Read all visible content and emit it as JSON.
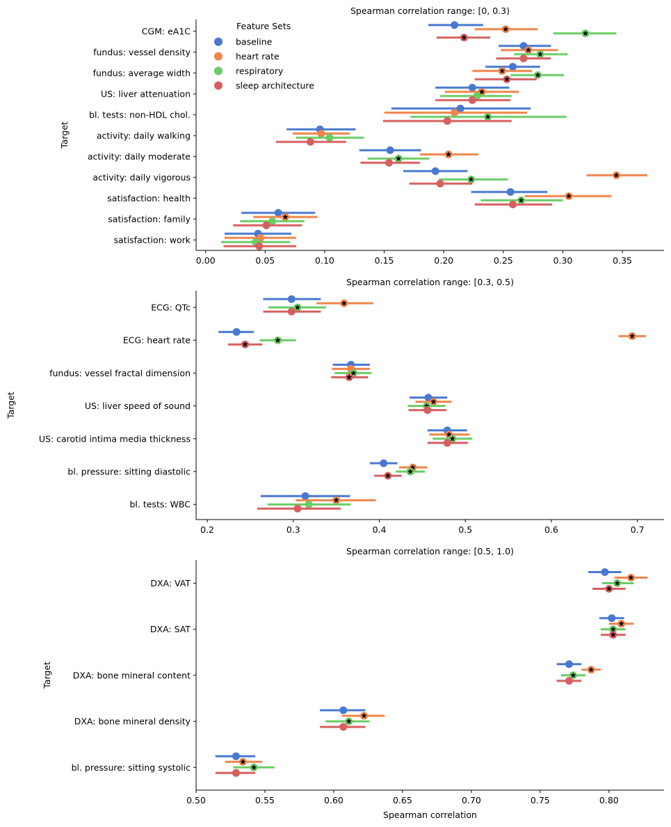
{
  "feature_sets": [
    "baseline",
    "heart rate",
    "respiratory",
    "sleep architecture"
  ],
  "colors": {
    "baseline": "#4878d0",
    "heart rate": "#ee854a",
    "respiratory": "#6acc64",
    "sleep architecture": "#d65f5f",
    "star": "#000000"
  },
  "legend": {
    "title": "Feature Sets",
    "entries": [
      "baseline",
      "heart rate",
      "respiratory",
      "sleep architecture"
    ]
  },
  "chart_data": [
    {
      "type": "pointrange",
      "title": "Spearman correlation range: [0, 0.3)",
      "xlabel": "",
      "ylabel": "Target",
      "xlim": [
        -0.008,
        0.385
      ],
      "xticks": [
        "0.00",
        "0.05",
        "0.10",
        "0.15",
        "0.20",
        "0.25",
        "0.30",
        "0.35"
      ],
      "targets": [
        "CGM: eA1C",
        "fundus: vessel density",
        "fundus: average width",
        "US: liver attenuation",
        "bl. tests: non-HDL chol.",
        "activity: daily walking",
        "activity: daily moderate",
        "activity: daily vigorous",
        "satisfaction: health",
        "satisfaction: family",
        "satisfaction: work"
      ],
      "series": [
        {
          "name": "baseline",
          "values": [
            0.209,
            0.267,
            0.258,
            0.224,
            0.214,
            0.096,
            0.155,
            0.193,
            0.256,
            0.061,
            0.044
          ],
          "lo": [
            0.187,
            0.246,
            0.235,
            0.193,
            0.156,
            0.068,
            0.129,
            0.166,
            0.223,
            0.03,
            0.016
          ],
          "hi": [
            0.233,
            0.29,
            0.281,
            0.255,
            0.273,
            0.126,
            0.181,
            0.22,
            0.287,
            0.092,
            0.072
          ],
          "star": [
            false,
            false,
            false,
            false,
            false,
            false,
            false,
            false,
            false,
            false,
            false
          ]
        },
        {
          "name": "heart rate",
          "values": [
            0.252,
            0.271,
            0.249,
            0.232,
            0.209,
            0.097,
            0.204,
            0.345,
            0.305,
            0.067,
            0.046
          ],
          "lo": [
            0.226,
            0.248,
            0.224,
            0.201,
            0.15,
            0.073,
            0.18,
            0.32,
            0.268,
            0.04,
            0.016
          ],
          "hi": [
            0.279,
            0.296,
            0.274,
            0.263,
            0.27,
            0.121,
            0.229,
            0.371,
            0.341,
            0.094,
            0.076
          ],
          "star": [
            true,
            true,
            true,
            true,
            false,
            false,
            true,
            true,
            true,
            true,
            false
          ]
        },
        {
          "name": "respiratory",
          "values": [
            0.319,
            0.281,
            0.279,
            0.228,
            0.237,
            0.104,
            0.162,
            0.223,
            0.265,
            0.056,
            0.042
          ],
          "lo": [
            0.292,
            0.259,
            0.256,
            0.197,
            0.172,
            0.076,
            0.136,
            0.196,
            0.231,
            0.029,
            0.013
          ],
          "hi": [
            0.345,
            0.304,
            0.301,
            0.257,
            0.303,
            0.133,
            0.188,
            0.254,
            0.3,
            0.083,
            0.071
          ],
          "star": [
            true,
            true,
            true,
            false,
            true,
            false,
            true,
            true,
            true,
            false,
            false
          ]
        },
        {
          "name": "sleep architecture",
          "values": [
            0.217,
            0.267,
            0.253,
            0.224,
            0.203,
            0.088,
            0.154,
            0.197,
            0.258,
            0.051,
            0.045
          ],
          "lo": [
            0.194,
            0.244,
            0.226,
            0.193,
            0.149,
            0.059,
            0.13,
            0.171,
            0.226,
            0.023,
            0.015
          ],
          "hi": [
            0.239,
            0.29,
            0.278,
            0.256,
            0.257,
            0.118,
            0.18,
            0.224,
            0.291,
            0.081,
            0.076
          ],
          "star": [
            true,
            false,
            true,
            false,
            false,
            false,
            false,
            false,
            false,
            false,
            false
          ]
        }
      ]
    },
    {
      "type": "pointrange",
      "title": "Spearman correlation range: [0.3, 0.5)",
      "xlabel": "",
      "ylabel": "Target",
      "xlim": [
        0.187,
        0.731
      ],
      "xticks": [
        "0.2",
        "0.3",
        "0.4",
        "0.5",
        "0.6",
        "0.7"
      ],
      "targets": [
        "ECG: QTc",
        "ECG: heart rate",
        "fundus: vessel fractal dimension",
        "US: liver speed of sound",
        "US: carotid intima media thickness",
        "bl. pressure: sitting diastolic",
        "bl. tests: WBC"
      ],
      "series": [
        {
          "name": "baseline",
          "values": [
            0.298,
            0.234,
            0.367,
            0.457,
            0.479,
            0.405,
            0.314
          ],
          "lo": [
            0.265,
            0.213,
            0.346,
            0.435,
            0.456,
            0.389,
            0.262
          ],
          "hi": [
            0.332,
            0.254,
            0.389,
            0.479,
            0.502,
            0.421,
            0.366
          ],
          "star": [
            false,
            false,
            false,
            false,
            false,
            false,
            false
          ]
        },
        {
          "name": "heart rate",
          "values": [
            0.359,
            0.694,
            0.367,
            0.463,
            0.481,
            0.439,
            0.35
          ],
          "lo": [
            0.327,
            0.678,
            0.345,
            0.442,
            0.458,
            0.423,
            0.303
          ],
          "hi": [
            0.393,
            0.71,
            0.389,
            0.484,
            0.505,
            0.456,
            0.396
          ],
          "star": [
            true,
            true,
            false,
            true,
            true,
            true,
            true
          ]
        },
        {
          "name": "respiratory",
          "values": [
            0.305,
            0.282,
            0.37,
            0.455,
            0.485,
            0.436,
            0.318
          ],
          "lo": [
            0.271,
            0.261,
            0.348,
            0.433,
            0.462,
            0.419,
            0.27
          ],
          "hi": [
            0.338,
            0.303,
            0.391,
            0.477,
            0.508,
            0.453,
            0.367
          ],
          "star": [
            true,
            true,
            true,
            true,
            true,
            true,
            false
          ]
        },
        {
          "name": "sleep architecture",
          "values": [
            0.298,
            0.244,
            0.365,
            0.456,
            0.479,
            0.41,
            0.305
          ],
          "lo": [
            0.265,
            0.224,
            0.344,
            0.434,
            0.456,
            0.394,
            0.258
          ],
          "hi": [
            0.332,
            0.264,
            0.387,
            0.478,
            0.503,
            0.426,
            0.355
          ],
          "star": [
            false,
            true,
            true,
            false,
            false,
            true,
            false
          ]
        }
      ]
    },
    {
      "type": "pointrange",
      "title": "Spearman correlation range: [0.5, 1.0)",
      "xlabel": "Spearman correlation",
      "ylabel": "Target",
      "xlim": [
        0.5,
        0.84
      ],
      "xticks": [
        "0.50",
        "0.55",
        "0.60",
        "0.65",
        "0.70",
        "0.75",
        "0.80"
      ],
      "targets": [
        "DXA: VAT",
        "DXA: SAT",
        "DXA: bone mineral content",
        "DXA: bone mineral density",
        "bl. pressure: sitting systolic"
      ],
      "series": [
        {
          "name": "baseline",
          "values": [
            0.797,
            0.802,
            0.771,
            0.607,
            0.529
          ],
          "lo": [
            0.785,
            0.793,
            0.762,
            0.59,
            0.514
          ],
          "hi": [
            0.809,
            0.811,
            0.78,
            0.623,
            0.543
          ],
          "star": [
            false,
            false,
            false,
            false,
            false
          ]
        },
        {
          "name": "heart rate",
          "values": [
            0.816,
            0.809,
            0.787,
            0.622,
            0.534
          ],
          "lo": [
            0.804,
            0.8,
            0.78,
            0.606,
            0.521
          ],
          "hi": [
            0.828,
            0.818,
            0.794,
            0.637,
            0.548
          ],
          "star": [
            true,
            true,
            true,
            true,
            true
          ]
        },
        {
          "name": "respiratory",
          "values": [
            0.806,
            0.803,
            0.774,
            0.611,
            0.542
          ],
          "lo": [
            0.795,
            0.794,
            0.765,
            0.594,
            0.527
          ],
          "hi": [
            0.818,
            0.812,
            0.783,
            0.626,
            0.557
          ],
          "star": [
            true,
            true,
            true,
            true,
            true
          ]
        },
        {
          "name": "sleep architecture",
          "values": [
            0.8,
            0.803,
            0.771,
            0.607,
            0.529
          ],
          "lo": [
            0.788,
            0.794,
            0.762,
            0.59,
            0.514
          ],
          "hi": [
            0.812,
            0.812,
            0.78,
            0.623,
            0.543
          ],
          "star": [
            true,
            true,
            false,
            false,
            false
          ]
        }
      ]
    }
  ]
}
